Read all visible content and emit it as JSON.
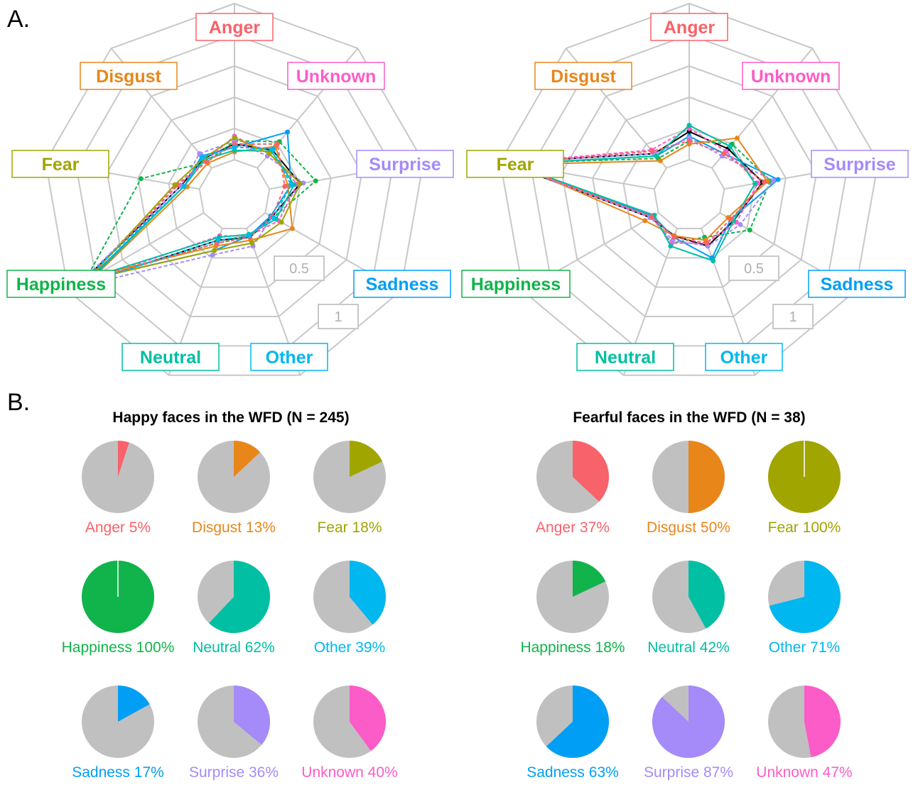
{
  "panel_a_label": "A.",
  "panel_b_label": "B.",
  "colors": {
    "Anger": "#f8626a",
    "Disgust": "#e8861a",
    "Fear": "#a0a500",
    "Happiness": "#10b44a",
    "Neutral": "#00bfa2",
    "Other": "#00b7f0",
    "Sadness": "#009ff5",
    "Surprise": "#a58afa",
    "Unknown": "#fc5cc8",
    "grid": "#c8c8c8",
    "pie_rest": "#c0c0c0"
  },
  "chart_data": [
    {
      "type": "radar",
      "axes": [
        "Anger",
        "Unknown",
        "Surprise",
        "Sadness",
        "Other",
        "Neutral",
        "Happiness",
        "Fear",
        "Disgust"
      ],
      "ring_labels": [
        "0.5",
        "1"
      ],
      "range": [
        0,
        1
      ],
      "series": [
        {
          "values": [
            0.1,
            0.15,
            0.2,
            0.05,
            0.06,
            0.08,
            0.92,
            0.12,
            0.08
          ]
        },
        {
          "values": [
            0.12,
            0.22,
            0.3,
            0.06,
            0.05,
            0.1,
            0.88,
            0.38,
            0.05
          ]
        },
        {
          "values": [
            0.08,
            0.3,
            0.14,
            0.04,
            0.05,
            0.15,
            0.85,
            0.1,
            0.1
          ]
        },
        {
          "values": [
            0.15,
            0.12,
            0.18,
            0.1,
            0.05,
            0.05,
            0.9,
            0.15,
            0.06
          ]
        },
        {
          "values": [
            0.05,
            0.18,
            0.12,
            0.2,
            0.08,
            0.12,
            0.8,
            0.08,
            0.04
          ]
        },
        {
          "values": [
            0.12,
            0.1,
            0.22,
            0.05,
            0.12,
            0.18,
            0.95,
            0.12,
            0.12
          ]
        },
        {
          "values": [
            0.06,
            0.14,
            0.16,
            0.08,
            0.04,
            0.06,
            0.82,
            0.1,
            0.07
          ]
        },
        {
          "values": [
            0.1,
            0.2,
            0.1,
            0.05,
            0.06,
            0.1,
            0.88,
            0.14,
            0.05
          ]
        },
        {
          "values": [
            0.14,
            0.12,
            0.2,
            0.12,
            0.1,
            0.15,
            0.86,
            0.16,
            0.08
          ]
        },
        {
          "values": [
            0.08,
            0.16,
            0.14,
            0.06,
            0.05,
            0.08,
            0.93,
            0.1,
            0.09
          ]
        }
      ]
    },
    {
      "type": "radar",
      "axes": [
        "Anger",
        "Unknown",
        "Surprise",
        "Sadness",
        "Other",
        "Neutral",
        "Happiness",
        "Fear",
        "Disgust"
      ],
      "ring_labels": [
        "0.5",
        "1"
      ],
      "range": [
        0,
        1
      ],
      "series": [
        {
          "values": [
            0.18,
            0.16,
            0.25,
            0.1,
            0.12,
            0.05,
            0.06,
            0.98,
            0.12
          ]
        },
        {
          "values": [
            0.12,
            0.2,
            0.3,
            0.22,
            0.06,
            0.1,
            0.05,
            0.95,
            0.08
          ]
        },
        {
          "values": [
            0.15,
            0.12,
            0.35,
            0.08,
            0.2,
            0.06,
            0.04,
            0.92,
            0.1
          ]
        },
        {
          "values": [
            0.2,
            0.14,
            0.22,
            0.12,
            0.1,
            0.1,
            0.05,
            0.96,
            0.15
          ]
        },
        {
          "values": [
            0.1,
            0.25,
            0.28,
            0.06,
            0.08,
            0.05,
            0.1,
            0.9,
            0.06
          ]
        },
        {
          "values": [
            0.14,
            0.1,
            0.32,
            0.15,
            0.12,
            0.08,
            0.06,
            0.97,
            0.12
          ]
        },
        {
          "values": [
            0.22,
            0.18,
            0.2,
            0.1,
            0.22,
            0.12,
            0.03,
            0.93,
            0.1
          ]
        },
        {
          "values": [
            0.12,
            0.12,
            0.26,
            0.08,
            0.1,
            0.06,
            0.05,
            0.95,
            0.14
          ]
        }
      ]
    },
    {
      "type": "pie",
      "title": "Happy faces in the WFD (N = 245)",
      "slices": [
        {
          "category": "Anger",
          "label": "Anger 5%",
          "value": 5
        },
        {
          "category": "Disgust",
          "label": "Disgust 13%",
          "value": 13
        },
        {
          "category": "Fear",
          "label": "Fear 18%",
          "value": 18
        },
        {
          "category": "Happiness",
          "label": "Happiness 100%",
          "value": 100
        },
        {
          "category": "Neutral",
          "label": "Neutral 62%",
          "value": 62
        },
        {
          "category": "Other",
          "label": "Other 39%",
          "value": 39
        },
        {
          "category": "Sadness",
          "label": "Sadness 17%",
          "value": 17
        },
        {
          "category": "Surprise",
          "label": "Surprise 36%",
          "value": 36
        },
        {
          "category": "Unknown",
          "label": "Unknown 40%",
          "value": 40
        }
      ]
    },
    {
      "type": "pie",
      "title": "Fearful faces in the WFD (N = 38)",
      "slices": [
        {
          "category": "Anger",
          "label": "Anger 37%",
          "value": 37
        },
        {
          "category": "Disgust",
          "label": "Disgust 50%",
          "value": 50
        },
        {
          "category": "Fear",
          "label": "Fear 100%",
          "value": 100
        },
        {
          "category": "Happiness",
          "label": "Happiness 18%",
          "value": 18
        },
        {
          "category": "Neutral",
          "label": "Neutral 42%",
          "value": 42
        },
        {
          "category": "Other",
          "label": "Other 71%",
          "value": 71
        },
        {
          "category": "Sadness",
          "label": "Sadness 63%",
          "value": 63
        },
        {
          "category": "Surprise",
          "label": "Surprise 87%",
          "value": 87
        },
        {
          "category": "Unknown",
          "label": "Unknown 47%",
          "value": 47
        }
      ]
    }
  ]
}
